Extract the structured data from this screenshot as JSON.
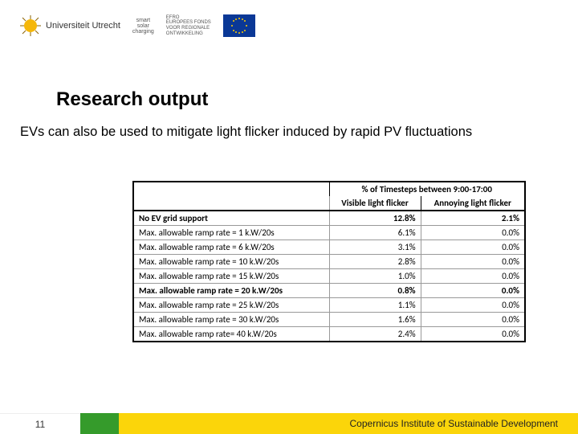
{
  "header": {
    "uu_text": "Universiteit Utrecht",
    "smart_line1": "smart",
    "smart_line2": "solar",
    "smart_line3": "charging",
    "efro_line1": "EFRO",
    "efro_line2": "EUROPEES FONDS",
    "efro_line3": "VOOR REGIONALE",
    "efro_line4": "ONTWIKKELING"
  },
  "title": "Research output",
  "subtitle": "EVs can also be used to mitigate light flicker induced by rapid PV fluctuations",
  "table": {
    "header_top_blank": "",
    "header_top_span": "% of Timesteps between 9:00-17:00",
    "header_col1": "Visible light flicker",
    "header_col2": "Annoying light flicker",
    "rows": [
      {
        "label": "No EV grid support",
        "c1": "12.8%",
        "c2": "2.1%",
        "bold": true
      },
      {
        "label": "Max. allowable ramp rate = 1 k.W/20s",
        "c1": "6.1%",
        "c2": "0.0%",
        "bold": false
      },
      {
        "label": "Max. allowable ramp rate = 6 k.W/20s",
        "c1": "3.1%",
        "c2": "0.0%",
        "bold": false
      },
      {
        "label": "Max. allowable ramp rate = 10 k.W/20s",
        "c1": "2.8%",
        "c2": "0.0%",
        "bold": false
      },
      {
        "label": "Max. allowable ramp rate = 15 k.W/20s",
        "c1": "1.0%",
        "c2": "0.0%",
        "bold": false
      },
      {
        "label": "Max. allowable ramp rate = 20 k.W/20s",
        "c1": "0.8%",
        "c2": "0.0%",
        "bold": true
      },
      {
        "label": "Max. allowable ramp rate = 25 k.W/20s",
        "c1": "1.1%",
        "c2": "0.0%",
        "bold": false
      },
      {
        "label": "Max. allowable ramp rate = 30 k.W/20s",
        "c1": "1.6%",
        "c2": "0.0%",
        "bold": false
      },
      {
        "label": "Max. allowable ramp rate= 40 k.W/20s",
        "c1": "2.4%",
        "c2": "0.0%",
        "bold": false
      }
    ]
  },
  "footer": {
    "page_number": "11",
    "institute": "Copernicus Institute of Sustainable Development"
  },
  "colors": {
    "footer_green": "#359b2b",
    "footer_yellow": "#fbd50a",
    "uu_sun": "#f5b70a",
    "eu_blue": "#0a3896"
  }
}
